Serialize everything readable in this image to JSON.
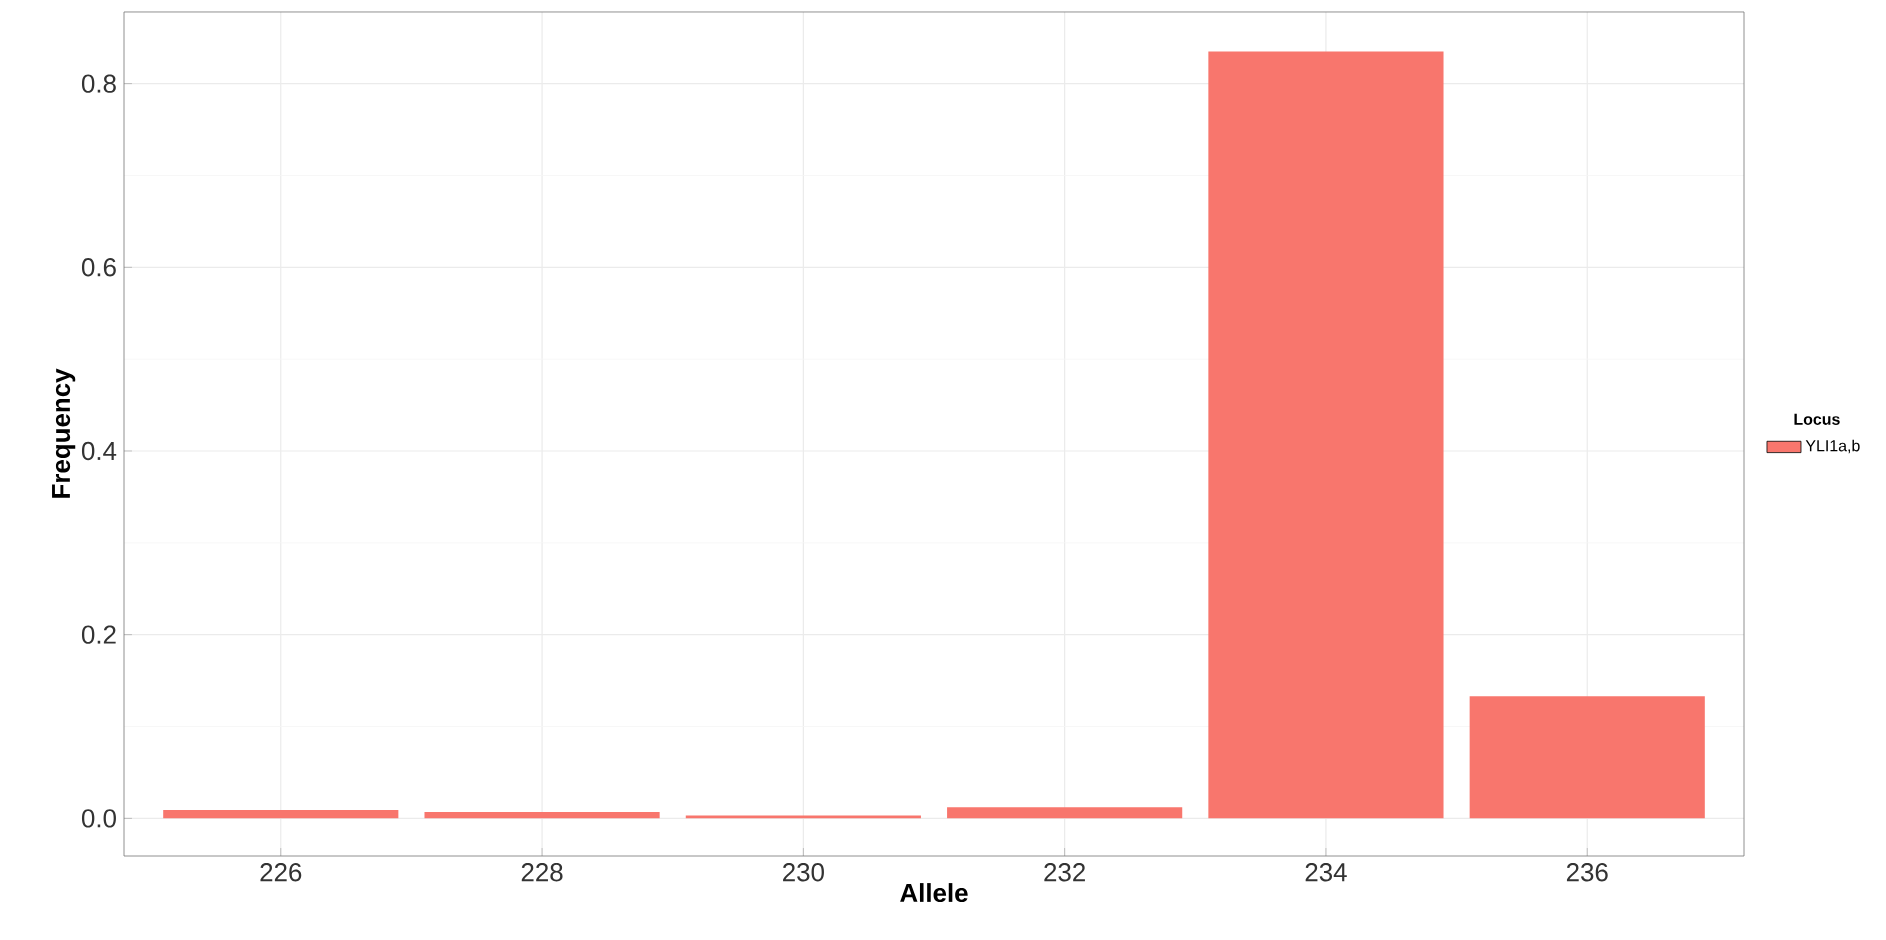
{
  "chart_data": {
    "type": "bar",
    "xlabel": "Allele",
    "ylabel": "Frequency",
    "legend_title": "Locus",
    "categories": [
      "226",
      "228",
      "230",
      "232",
      "234",
      "236"
    ],
    "series": [
      {
        "name": "YLI1a,b",
        "color": "#f8766d",
        "values": [
          0.009,
          0.007,
          0.003,
          0.012,
          0.835,
          0.133
        ]
      }
    ],
    "ylim": [
      -0.041,
      0.878
    ],
    "yticks": [
      {
        "value": 0,
        "label": "0.0"
      },
      {
        "value": 0.2,
        "label": "0.2"
      },
      {
        "value": 0.4,
        "label": "0.4"
      },
      {
        "value": 0.6,
        "label": "0.6"
      },
      {
        "value": 0.8,
        "label": "0.8"
      }
    ],
    "grid": true,
    "legend": "right"
  }
}
